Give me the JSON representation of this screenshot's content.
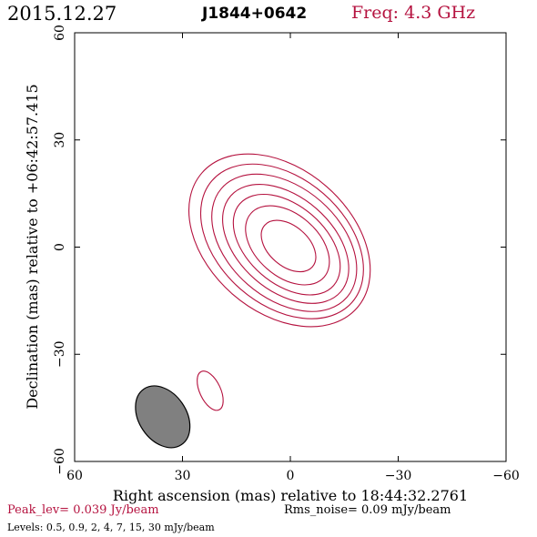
{
  "header": {
    "date": "2015.12.27",
    "source": "J1844+0642",
    "freq": "Freq: 4.3 GHz"
  },
  "footer": {
    "peak": "Peak_lev=  0.039 Jy/beam",
    "rms": "Rms_noise= 0.09 mJy/beam",
    "levels": "Levels: 0.5, 0.9,   2,   4,   7,  15,  30 mJy/beam"
  },
  "colors": {
    "contour": "#b5123f",
    "accent_text": "#b5123f",
    "beam_fill": "#808080",
    "axis": "#000000"
  },
  "chart_data": {
    "type": "contour",
    "xlabel": "Right ascension (mas) relative to 18:44:32.2761",
    "ylabel": "Declination (mas) relative to +06:42:57.415",
    "xlim": [
      60,
      -60
    ],
    "ylim": [
      -60,
      60
    ],
    "xticks": [
      60,
      30,
      0,
      -30,
      -60
    ],
    "xtick_labels": [
      "60",
      "30",
      "0",
      "−30",
      "−60"
    ],
    "yticks": [
      -60,
      -30,
      0,
      30,
      60
    ],
    "ytick_labels": [
      "−60",
      "−30",
      "0",
      "30",
      "60"
    ],
    "levels_mJy": [
      0.5,
      0.9,
      2,
      4,
      7,
      15,
      30
    ],
    "source_center": [
      0.5,
      0.3
    ],
    "source_position_angle_deg": 41,
    "contour_semi_axes": [
      [
        28.6,
        20.0
      ],
      [
        25.8,
        17.7
      ],
      [
        23.1,
        15.5
      ],
      [
        20.3,
        13.1
      ],
      [
        17.3,
        10.9
      ],
      [
        13.5,
        8.7
      ],
      [
        8.8,
        5.6
      ]
    ],
    "contour_center_offsets": [
      [
        2.5,
        1.6
      ],
      [
        1.8,
        1.3
      ],
      [
        1.2,
        0.9
      ],
      [
        0.8,
        0.6
      ],
      [
        0.5,
        0.4
      ],
      [
        0.3,
        0.2
      ],
      [
        0.0,
        0.0
      ]
    ],
    "secondary_component": {
      "center": [
        22.3,
        -40.2
      ],
      "semi_axes": [
        5.9,
        2.9
      ],
      "position_angle_deg": 25
    },
    "beam": {
      "center": [
        35.5,
        -47.5
      ],
      "semi_axes": [
        9.4,
        6.6
      ],
      "position_angle_deg": 34
    }
  }
}
